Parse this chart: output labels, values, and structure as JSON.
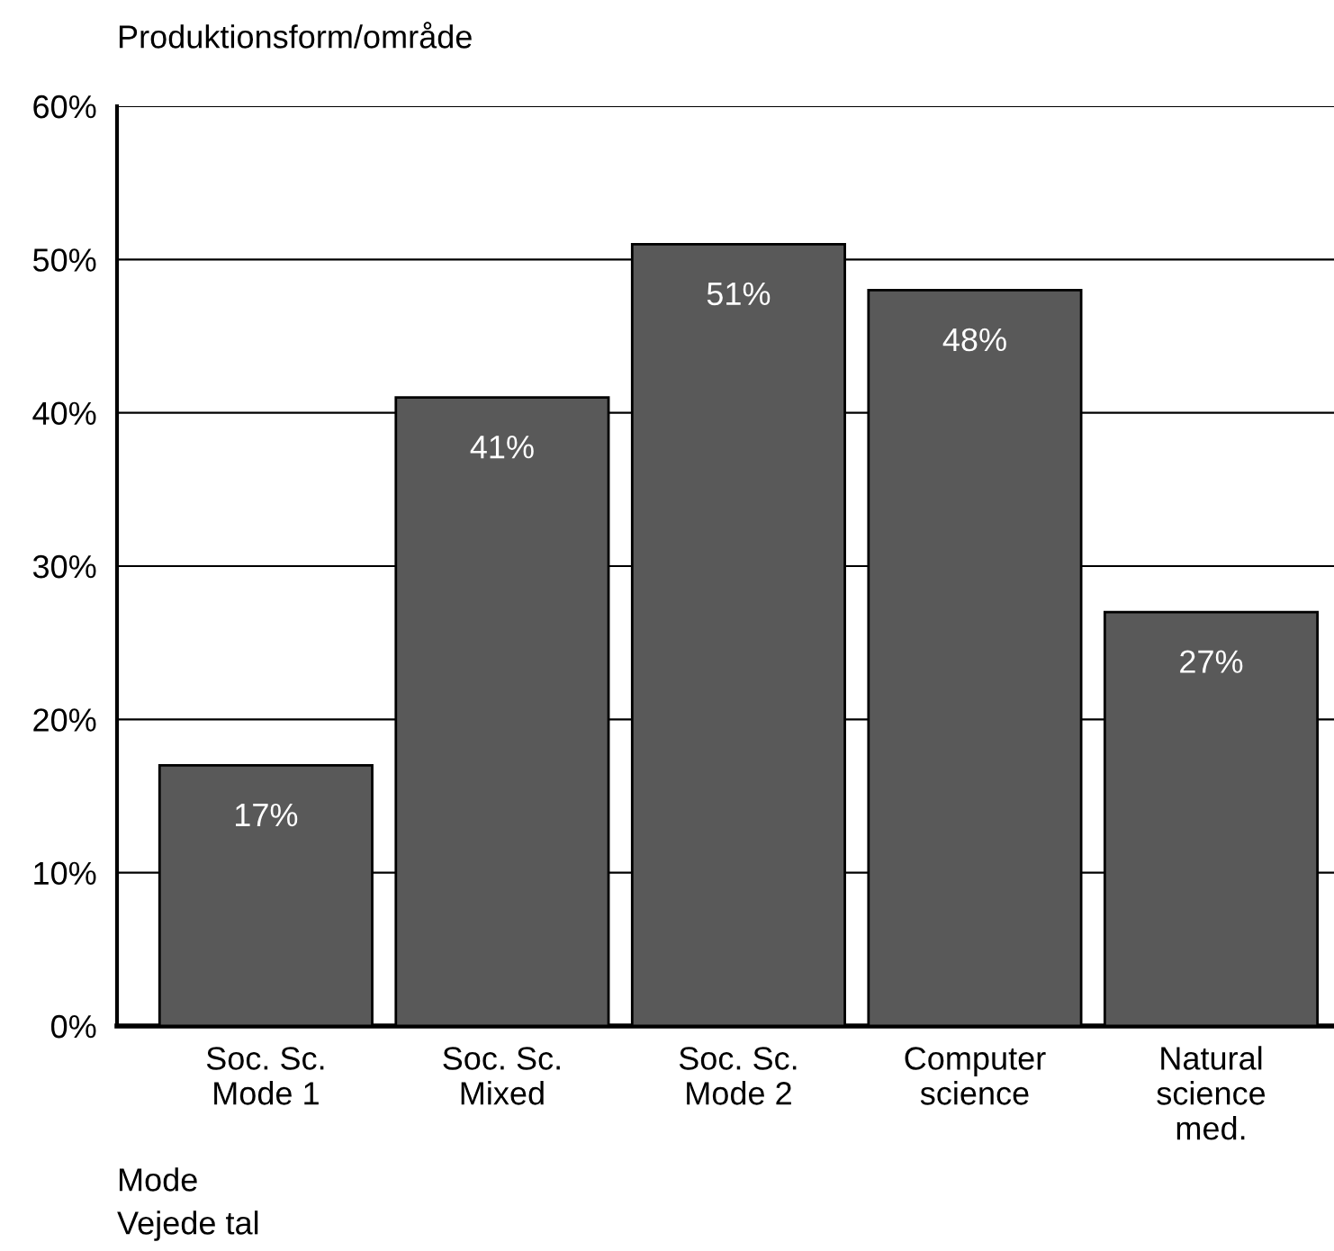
{
  "chart_data": {
    "type": "bar",
    "title": "Produktionsform/område",
    "categories": [
      "Soc. Sc.\nMode 1",
      "Soc. Sc.\nMixed",
      "Soc. Sc.\nMode 2",
      "Computer\nscience",
      "Natural\nscience\nmed."
    ],
    "values": [
      17,
      41,
      51,
      48,
      27
    ],
    "color": "#595959",
    "value_labels": [
      "17%",
      "41%",
      "51%",
      "48%",
      "27%"
    ],
    "ylim": [
      0,
      60
    ],
    "yticks": [
      {
        "value": 0,
        "label": "0%"
      },
      {
        "value": 10,
        "label": "10%"
      },
      {
        "value": 20,
        "label": "20%"
      },
      {
        "value": 30,
        "label": "30%"
      },
      {
        "value": 40,
        "label": "40%"
      },
      {
        "value": 50,
        "label": "50%"
      },
      {
        "value": 60,
        "label": "60%"
      }
    ],
    "grid": "y",
    "annotations": [
      "Mode",
      "Vejede tal"
    ]
  }
}
